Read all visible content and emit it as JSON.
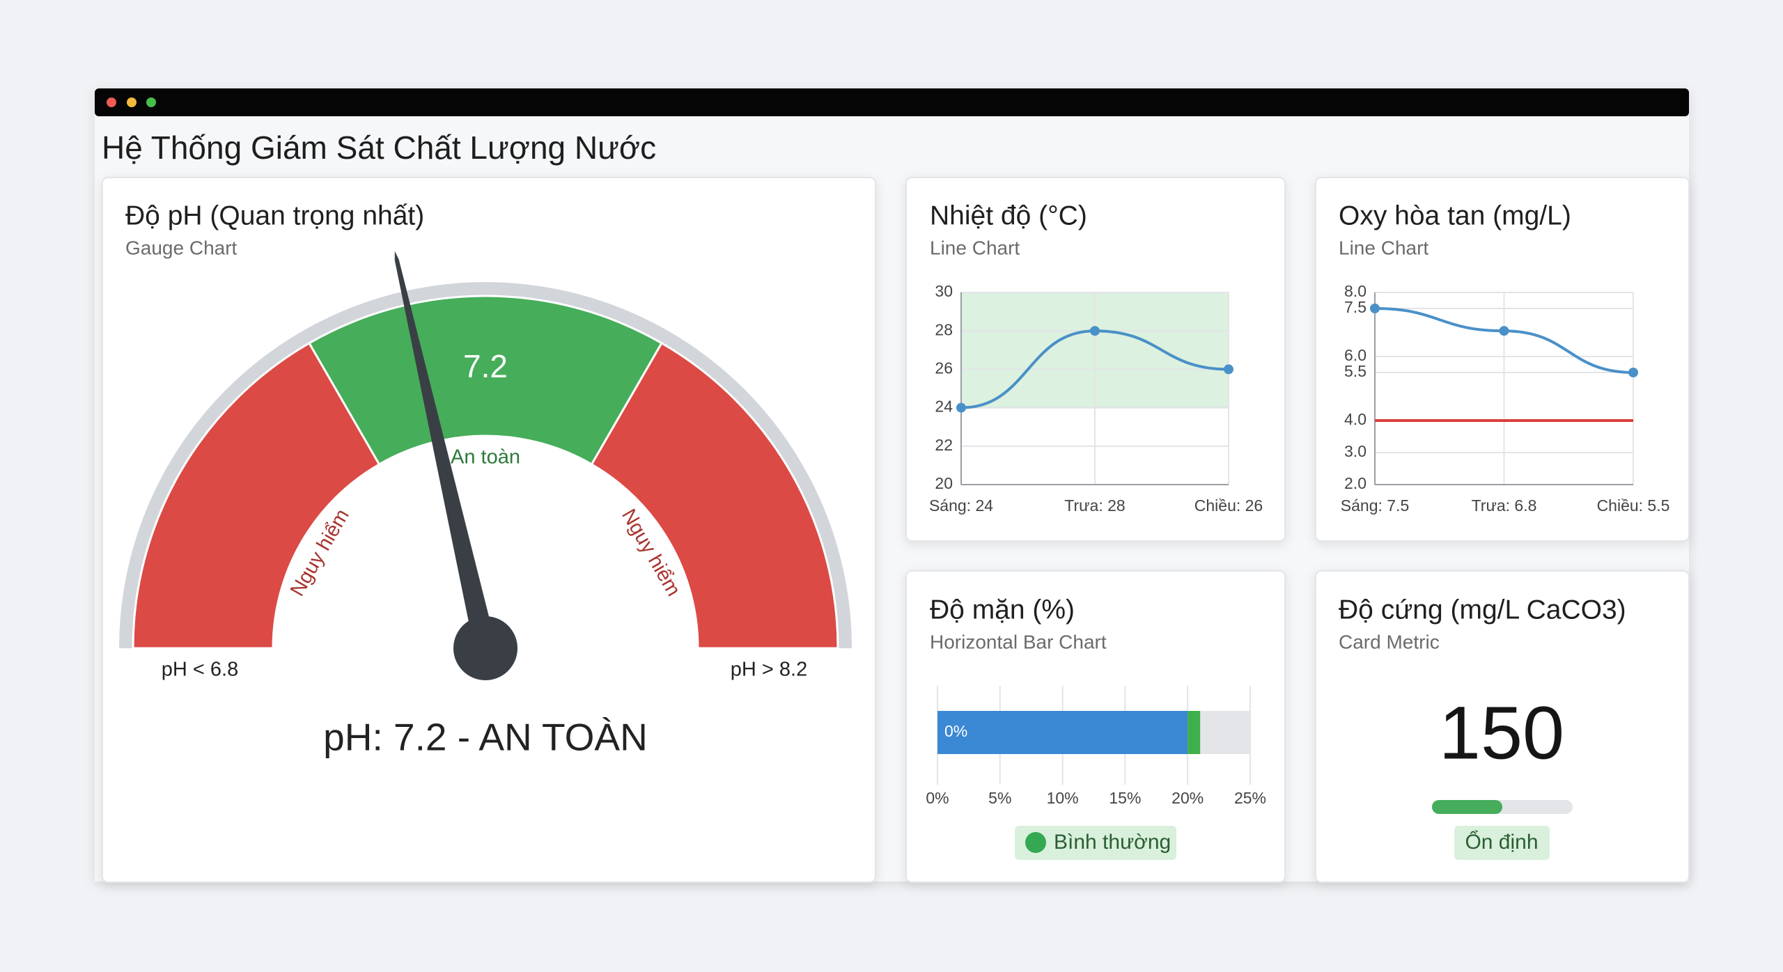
{
  "title": "Hệ Thống Giám Sát Chất Lượng Nước",
  "chart_data": [
    {
      "type": "gauge",
      "title": "Độ pH (Quan trọng nhất)",
      "subtitle": "Gauge Chart",
      "value": 7.2,
      "ylim": [
        5.4,
        9.6
      ],
      "thresholds": [
        6.8,
        8.2
      ],
      "band_labels": [
        "Nguy hiểm",
        "An toàn",
        "Nguy hiểm"
      ],
      "colors": [
        "#dc4a45",
        "#46ad5a",
        "#dc4a45"
      ],
      "min_label": "pH < 6.8",
      "max_label": "pH > 8.2",
      "status": "pH: 7.2 - AN TOÀN"
    },
    {
      "type": "line",
      "title": "Nhiệt độ (°C)",
      "subtitle": "Line Chart",
      "categories": [
        "Sáng: 24",
        "Trưa: 28",
        "Chiều: 26"
      ],
      "values": [
        24,
        28,
        26
      ],
      "color": "#4a90c8",
      "ylim": [
        20,
        30
      ],
      "yticks": [
        20,
        22,
        24,
        26,
        28,
        30
      ],
      "band": [
        24,
        30
      ],
      "band_color": "#d6efd9",
      "grid": true
    },
    {
      "type": "line",
      "title": "Oxy hòa tan (mg/L)",
      "subtitle": "Line Chart",
      "categories": [
        "Sáng: 7.5",
        "Trưa: 6.8",
        "Chiều: 5.5"
      ],
      "values": [
        7.5,
        6.8,
        5.5
      ],
      "color": "#4a90c8",
      "ylim": [
        2,
        8
      ],
      "yticks": [
        {
          "value": 2,
          "label": "2.0"
        },
        {
          "value": 3,
          "label": "3.0"
        },
        {
          "value": 4,
          "label": "4.0"
        },
        5.5,
        {
          "value": 6,
          "label": "6.0"
        },
        7.5,
        {
          "value": 8,
          "label": "8.0"
        }
      ],
      "threshold": 4,
      "threshold_color": "#d9403a",
      "grid": true
    },
    {
      "type": "hbar",
      "title": "Độ mặn (%)",
      "subtitle": "Horizontal Bar Chart",
      "values": [
        20,
        1
      ],
      "colors": [
        "#3b88d4",
        "#3db04b"
      ],
      "track_color": "#e3e5e8",
      "xlim": [
        0,
        25
      ],
      "xticks": [
        {
          "value": 0,
          "label": "0%"
        },
        {
          "value": 5,
          "label": "5%"
        },
        {
          "value": 10,
          "label": "10%"
        },
        {
          "value": 15,
          "label": "15%"
        },
        {
          "value": 20,
          "label": "20%"
        },
        {
          "value": 25,
          "label": "25%"
        }
      ],
      "bar_label": "0%",
      "badge": "Bình thường",
      "grid": true
    },
    {
      "type": "metric",
      "title": "Độ cứng (mg/L CaCO3)",
      "subtitle": "Card Metric",
      "value": 150,
      "ylim": [
        0,
        300
      ],
      "color": "#45ad5b",
      "track_color": "#e3e5e8",
      "badge": "Ổn định"
    }
  ]
}
